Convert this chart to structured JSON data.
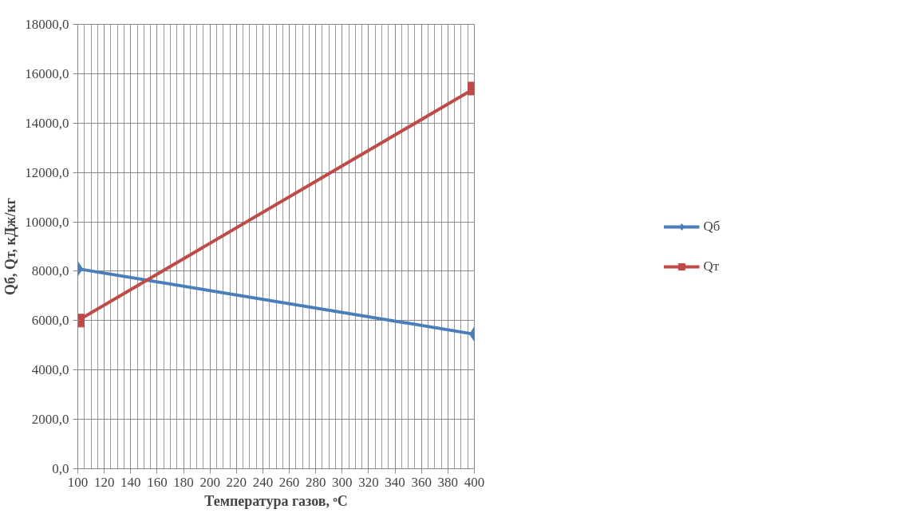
{
  "chart_data": {
    "type": "line",
    "xlabel": "Температура газов, ᵒC",
    "ylabel": "Qб, Qт, кДж/кг",
    "x": [
      100,
      400
    ],
    "series": [
      {
        "name": "Qб",
        "color": "#4a7ebb",
        "values": [
          8100,
          5450
        ],
        "marker": "diamond"
      },
      {
        "name": "Qт",
        "color": "#be4b48",
        "values": [
          6000,
          15400
        ],
        "marker": "square"
      }
    ],
    "xlim": [
      100,
      400
    ],
    "xticks": [
      100,
      120,
      140,
      160,
      180,
      200,
      220,
      240,
      260,
      280,
      300,
      320,
      340,
      360,
      380,
      400
    ],
    "ylim": [
      0,
      18000
    ],
    "yticks": [
      {
        "value": 0,
        "label": "0,0"
      },
      {
        "value": 2000,
        "label": "2000,0"
      },
      {
        "value": 4000,
        "label": "4000,0"
      },
      {
        "value": 6000,
        "label": "6000,0"
      },
      {
        "value": 8000,
        "label": "8000,0"
      },
      {
        "value": 10000,
        "label": "10000,0"
      },
      {
        "value": 12000,
        "label": "12000,0"
      },
      {
        "value": 14000,
        "label": "14000,0"
      },
      {
        "value": 16000,
        "label": "16000,0"
      },
      {
        "value": 18000,
        "label": "18000,0"
      }
    ],
    "grid": true,
    "legend": "right",
    "line_style": "solid"
  }
}
